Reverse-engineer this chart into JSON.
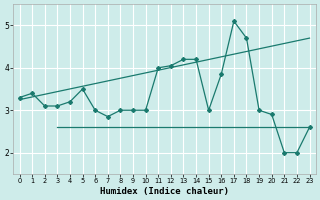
{
  "xlabel": "Humidex (Indice chaleur)",
  "x_values": [
    0,
    1,
    2,
    3,
    4,
    5,
    6,
    7,
    8,
    9,
    10,
    11,
    12,
    13,
    14,
    15,
    16,
    17,
    18,
    19,
    20,
    21,
    22,
    23
  ],
  "line1_y": [
    3.3,
    3.4,
    3.1,
    3.1,
    3.2,
    3.5,
    3.0,
    2.85,
    3.0,
    3.0,
    3.0,
    4.0,
    4.05,
    4.2,
    4.2,
    3.0,
    3.85,
    5.1,
    4.7,
    3.0,
    2.9,
    2.0,
    2.0,
    2.6
  ],
  "flat_line_x": [
    3,
    23
  ],
  "flat_line_y": [
    2.6,
    2.6
  ],
  "trend_x": [
    0,
    23
  ],
  "trend_y": [
    3.25,
    4.7
  ],
  "bg_color": "#ceecea",
  "grid_color": "#ffffff",
  "line_color": "#1a7a6e",
  "ylim": [
    1.5,
    5.5
  ],
  "xlim": [
    -0.5,
    23.5
  ],
  "yticks": [
    2,
    3,
    4,
    5
  ],
  "xticks": [
    0,
    1,
    2,
    3,
    4,
    5,
    6,
    7,
    8,
    9,
    10,
    11,
    12,
    13,
    14,
    15,
    16,
    17,
    18,
    19,
    20,
    21,
    22,
    23
  ]
}
